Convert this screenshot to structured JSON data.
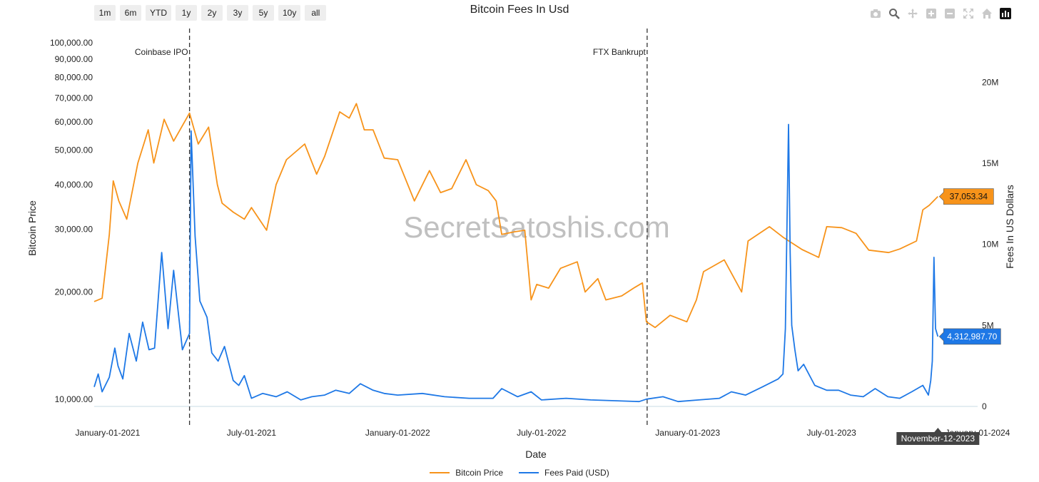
{
  "page": {
    "title": "Bitcoin Fees In Usd",
    "watermark": "SecretSatoshis.com"
  },
  "range_buttons": [
    "1m",
    "6m",
    "YTD",
    "1y",
    "2y",
    "3y",
    "5y",
    "10y",
    "all"
  ],
  "toolbar_icons": [
    "camera-icon",
    "zoom-icon",
    "pan-icon",
    "zoom-in-icon",
    "zoom-out-icon",
    "autoscale-icon",
    "reset-axes-icon",
    "plotly-logo-icon"
  ],
  "colors": {
    "price": "#f7931a",
    "fees": "#1e78e6",
    "annotation_line": "#333333",
    "grid": "#d9dde3"
  },
  "chart_data": {
    "type": "line",
    "title": "Bitcoin Fees In Usd",
    "xlabel": "Date",
    "y_left_label": "Bitcoin Price",
    "y_right_label": "Fees In US Dollars",
    "y_left_scale": "log",
    "y_left_range": [
      10000,
      100000
    ],
    "y_right_range": [
      0,
      22000000
    ],
    "x_range": [
      "2020-12-15",
      "2024-01-01"
    ],
    "left_ticks": [
      "10,000.00",
      "20,000.00",
      "30,000.00",
      "40,000.00",
      "50,000.00",
      "60,000.00",
      "70,000.00",
      "80,000.00",
      "90,000.00",
      "100,000.00"
    ],
    "left_tick_values": [
      10000,
      20000,
      30000,
      40000,
      50000,
      60000,
      70000,
      80000,
      90000,
      100000
    ],
    "right_ticks": [
      "0",
      "5M",
      "10M",
      "15M",
      "20M"
    ],
    "right_tick_values": [
      0,
      5000000,
      10000000,
      15000000,
      20000000
    ],
    "x_ticks": [
      "January-01-2021",
      "July-01-2021",
      "January-01-2022",
      "July-01-2022",
      "January-01-2023",
      "July-01-2023",
      "January-01-2024"
    ],
    "x_tick_dates": [
      "2021-01-01",
      "2021-07-01",
      "2022-01-01",
      "2022-07-01",
      "2023-01-01",
      "2023-07-01",
      "2024-01-01"
    ],
    "annotations": [
      {
        "label": "Coinbase IPO",
        "date": "2021-04-14"
      },
      {
        "label": "FTX Bankrupt",
        "date": "2022-11-11"
      }
    ],
    "hover": {
      "date_label": "November-12-2023",
      "price_label": "37,053.34",
      "fees_label": "4,312,987.70",
      "price": 37053.34,
      "fees": 4312987.7
    },
    "series": [
      {
        "name": "Bitcoin Price",
        "axis": "left",
        "x": [
          "2020-12-15",
          "2020-12-25",
          "2021-01-03",
          "2021-01-08",
          "2021-01-15",
          "2021-01-25",
          "2021-02-08",
          "2021-02-21",
          "2021-02-28",
          "2021-03-13",
          "2021-03-25",
          "2021-04-14",
          "2021-04-25",
          "2021-05-08",
          "2021-05-19",
          "2021-05-25",
          "2021-06-08",
          "2021-06-22",
          "2021-07-01",
          "2021-07-20",
          "2021-08-01",
          "2021-08-14",
          "2021-09-06",
          "2021-09-21",
          "2021-10-01",
          "2021-10-20",
          "2021-11-01",
          "2021-11-10",
          "2021-11-20",
          "2021-12-01",
          "2021-12-15",
          "2022-01-01",
          "2022-01-22",
          "2022-02-10",
          "2022-02-24",
          "2022-03-10",
          "2022-03-28",
          "2022-04-10",
          "2022-04-25",
          "2022-05-05",
          "2022-05-12",
          "2022-05-28",
          "2022-06-10",
          "2022-06-18",
          "2022-06-25",
          "2022-07-10",
          "2022-07-25",
          "2022-08-15",
          "2022-08-25",
          "2022-09-10",
          "2022-09-20",
          "2022-10-10",
          "2022-10-25",
          "2022-11-05",
          "2022-11-10",
          "2022-11-21",
          "2022-12-10",
          "2022-12-31",
          "2023-01-12",
          "2023-01-21",
          "2023-02-16",
          "2023-03-10",
          "2023-03-18",
          "2023-04-14",
          "2023-05-01",
          "2023-05-25",
          "2023-06-15",
          "2023-06-25",
          "2023-07-14",
          "2023-08-01",
          "2023-08-17",
          "2023-09-11",
          "2023-09-25",
          "2023-10-16",
          "2023-10-24",
          "2023-11-01",
          "2023-11-12"
        ],
        "y": [
          18800,
          19200,
          29000,
          41000,
          36000,
          32000,
          46000,
          57000,
          46000,
          61000,
          53000,
          63500,
          52000,
          58000,
          40000,
          35500,
          33500,
          32000,
          34500,
          29800,
          40000,
          47000,
          52000,
          42800,
          48000,
          64000,
          61500,
          67500,
          57000,
          57000,
          47500,
          47000,
          36000,
          43800,
          38000,
          39000,
          47000,
          40000,
          38500,
          36000,
          29000,
          29500,
          29800,
          19000,
          21000,
          20500,
          23300,
          24300,
          20000,
          21800,
          19000,
          19500,
          20500,
          21200,
          16500,
          15900,
          17200,
          16500,
          19000,
          22800,
          24600,
          20000,
          27800,
          30500,
          28500,
          26300,
          25000,
          30500,
          30300,
          29200,
          26200,
          25800,
          26400,
          27800,
          34000,
          35000,
          37053.34
        ]
      },
      {
        "name": "Fees Paid (USD)",
        "axis": "right",
        "x": [
          "2020-12-15",
          "2020-12-20",
          "2020-12-25",
          "2021-01-03",
          "2021-01-10",
          "2021-01-14",
          "2021-01-20",
          "2021-01-28",
          "2021-02-06",
          "2021-02-14",
          "2021-02-22",
          "2021-03-01",
          "2021-03-10",
          "2021-03-18",
          "2021-03-25",
          "2021-04-05",
          "2021-04-14",
          "2021-04-16",
          "2021-04-21",
          "2021-04-27",
          "2021-05-06",
          "2021-05-12",
          "2021-05-20",
          "2021-05-28",
          "2021-06-08",
          "2021-06-15",
          "2021-06-22",
          "2021-07-01",
          "2021-07-15",
          "2021-08-01",
          "2021-08-15",
          "2021-09-01",
          "2021-09-15",
          "2021-10-01",
          "2021-10-15",
          "2021-11-01",
          "2021-11-15",
          "2021-12-01",
          "2021-12-15",
          "2022-01-01",
          "2022-02-01",
          "2022-03-01",
          "2022-04-01",
          "2022-05-01",
          "2022-05-12",
          "2022-06-01",
          "2022-06-18",
          "2022-07-01",
          "2022-08-01",
          "2022-09-01",
          "2022-10-01",
          "2022-11-01",
          "2022-11-10",
          "2022-12-01",
          "2022-12-20",
          "2023-01-15",
          "2023-02-10",
          "2023-02-25",
          "2023-03-15",
          "2023-04-05",
          "2023-04-25",
          "2023-05-01",
          "2023-05-04",
          "2023-05-08",
          "2023-05-10",
          "2023-05-12",
          "2023-05-16",
          "2023-05-20",
          "2023-05-27",
          "2023-06-10",
          "2023-06-25",
          "2023-07-10",
          "2023-07-25",
          "2023-08-10",
          "2023-08-25",
          "2023-09-10",
          "2023-09-25",
          "2023-10-10",
          "2023-10-24",
          "2023-10-31",
          "2023-11-03",
          "2023-11-05",
          "2023-11-07",
          "2023-11-09",
          "2023-11-12"
        ],
        "y": [
          1200000,
          2000000,
          900000,
          1800000,
          3600000,
          2500000,
          1700000,
          4500000,
          2800000,
          5200000,
          3500000,
          3600000,
          9500000,
          4800000,
          8400000,
          3500000,
          4500000,
          17000000,
          10500000,
          6500000,
          5500000,
          3300000,
          2800000,
          3700000,
          1600000,
          1300000,
          1900000,
          500000,
          800000,
          600000,
          900000,
          400000,
          600000,
          700000,
          1000000,
          800000,
          1400000,
          1000000,
          800000,
          700000,
          800000,
          600000,
          500000,
          500000,
          1100000,
          600000,
          900000,
          400000,
          500000,
          400000,
          350000,
          300000,
          450000,
          600000,
          300000,
          400000,
          500000,
          900000,
          700000,
          1200000,
          1700000,
          2000000,
          4800000,
          17400000,
          9500000,
          5000000,
          3500000,
          2200000,
          2600000,
          1300000,
          1000000,
          1000000,
          700000,
          600000,
          1100000,
          600000,
          500000,
          900000,
          1300000,
          700000,
          1600000,
          2800000,
          9200000,
          4800000,
          4312987.7
        ]
      }
    ]
  }
}
